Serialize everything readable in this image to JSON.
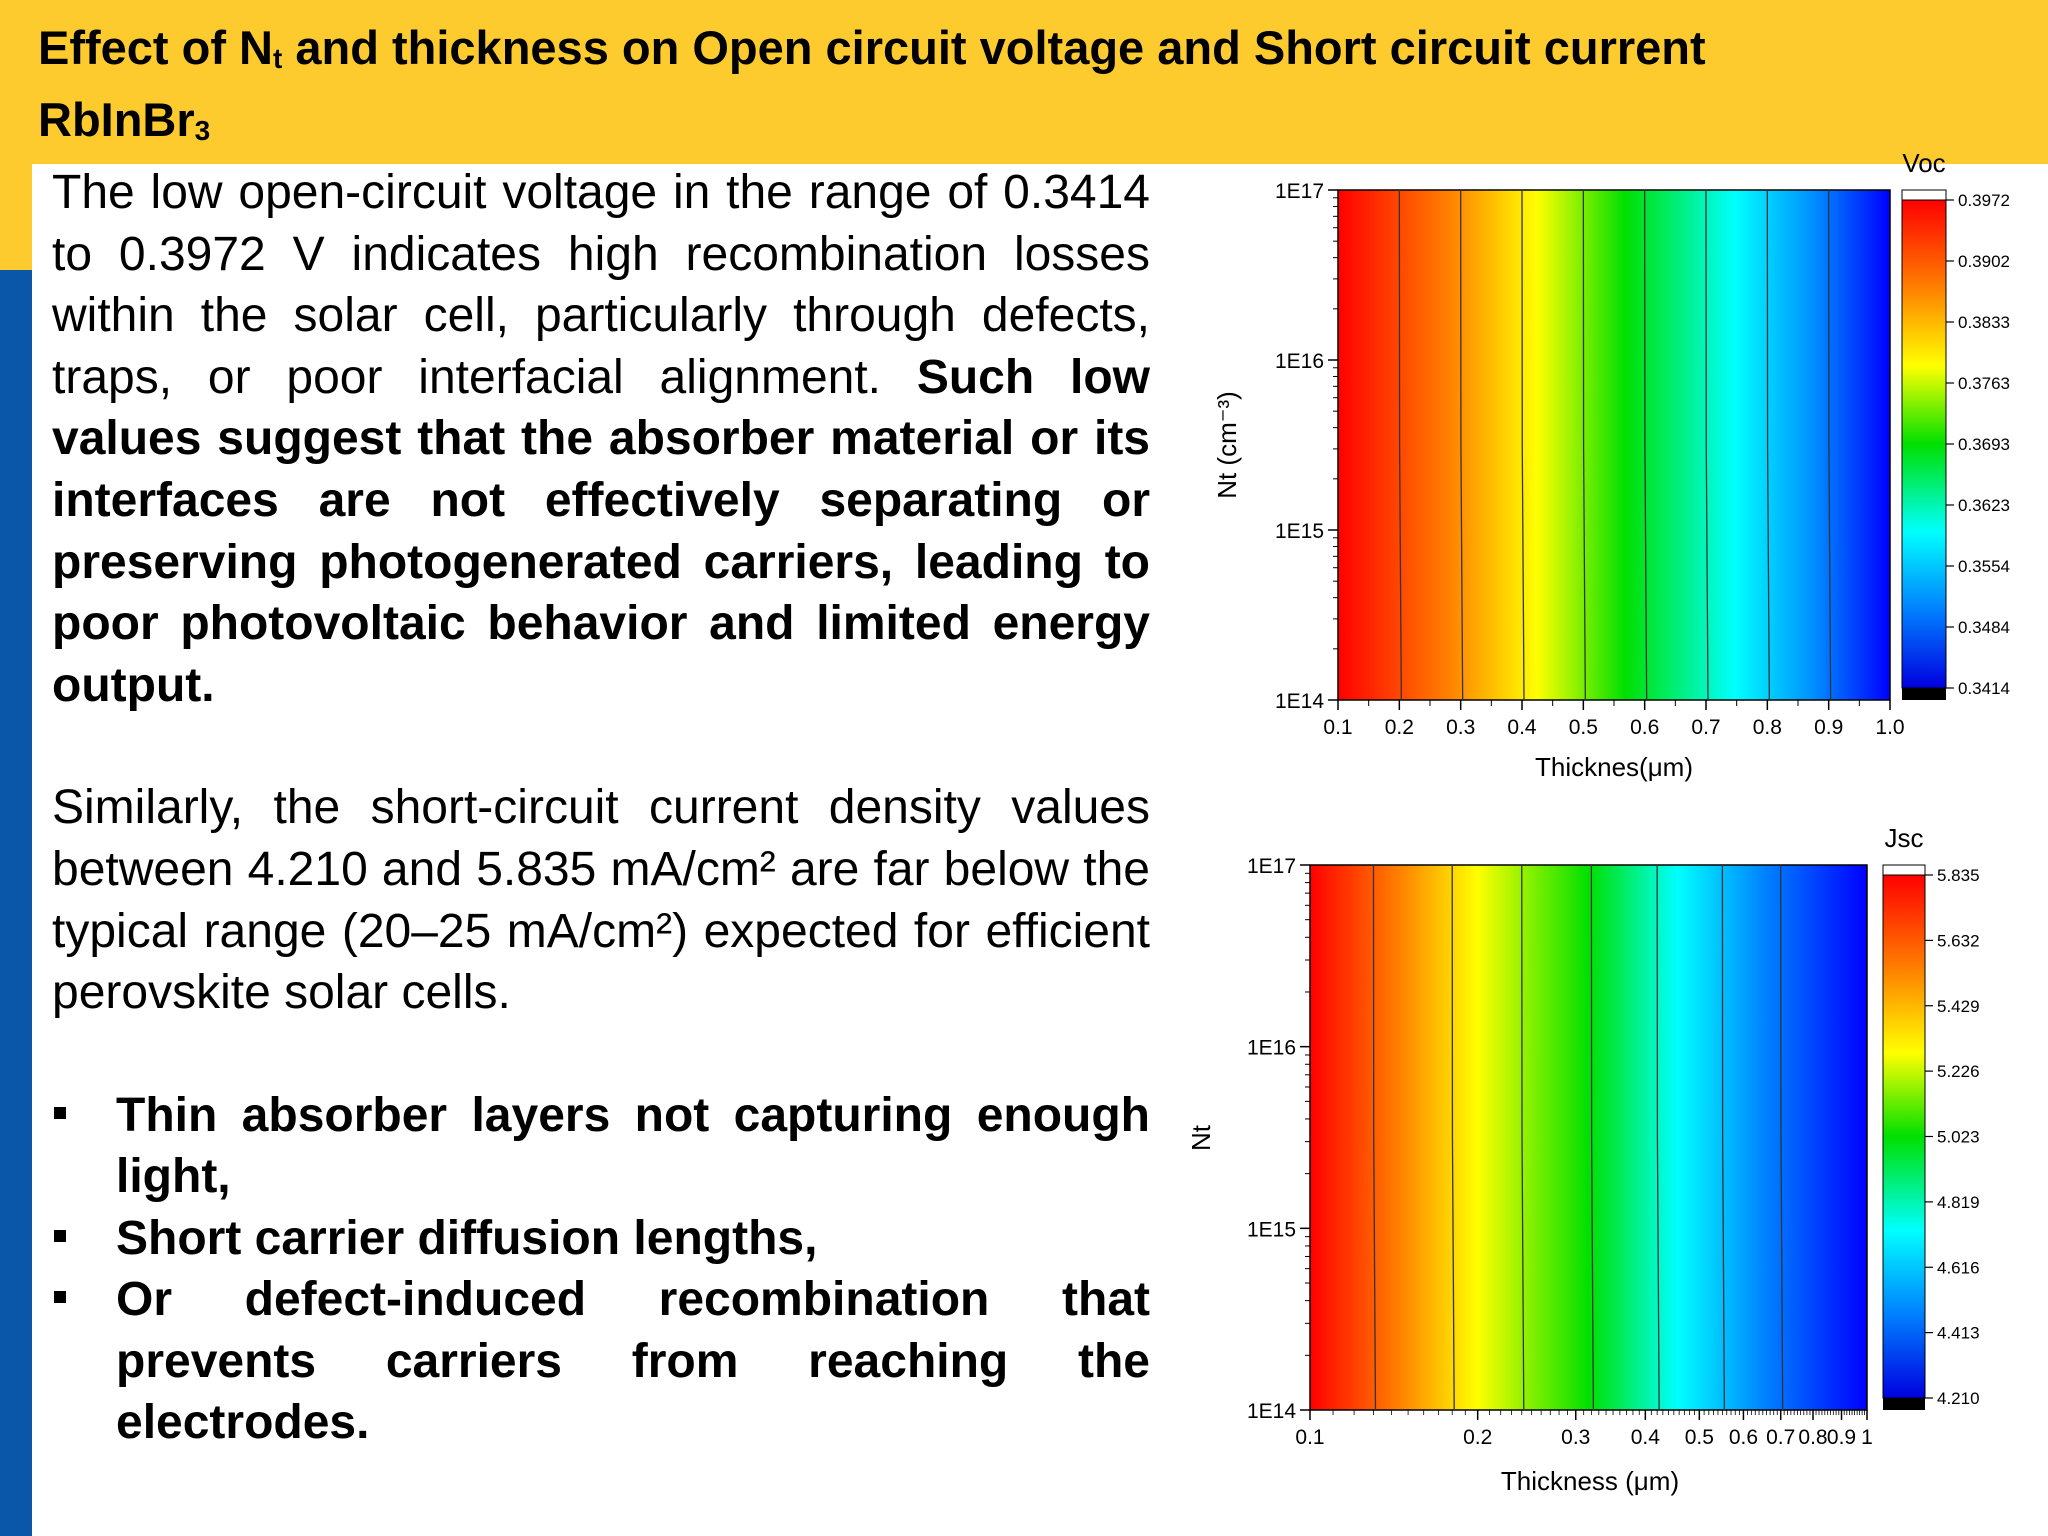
{
  "title": {
    "line1_a": "Effect of N",
    "line1_sub": "t",
    "line1_b": " and thickness on Open circuit voltage and Short circuit current",
    "line2_a": "RbInBr",
    "line2_sub": "3"
  },
  "paragraph1": {
    "normal": "The low open-circuit voltage in the range of 0.3414 to 0.3972 V indicates high recombination losses within the solar cell, particularly through defects, traps, or poor interfacial alignment.",
    "bold": " Such low values suggest that the absorber material or its interfaces are not effectively separating or preserving photogenerated carriers, leading to poor photovoltaic behavior and limited energy output."
  },
  "paragraph2": "Similarly, the short-circuit current density  values between 4.210 and 5.835 mA/cm² are far below the typical range (20–25 mA/cm²) expected for efficient perovskite solar cells.",
  "bullets": [
    "Thin absorber layers not capturing enough light,",
    "Short carrier diffusion lengths,",
    "Or defect-induced recombination that prevents carriers from reaching the electrodes."
  ],
  "chart_data": [
    {
      "type": "heatmap",
      "title": "Voc",
      "xlabel": "Thicknes(μm)",
      "ylabel": "Nt (cm⁻³)",
      "x_scale": "linear",
      "y_scale": "log",
      "x_ticks": [
        "0.1",
        "0.2",
        "0.3",
        "0.4",
        "0.5",
        "0.6",
        "0.7",
        "0.8",
        "0.9",
        "1.0"
      ],
      "y_ticks": [
        "1E14",
        "1E15",
        "1E16",
        "1E17"
      ],
      "xlim": [
        0.1,
        1.0
      ],
      "ylim": [
        100000000000000.0,
        1e+17
      ],
      "colorbar_ticks": [
        "0.3972",
        "0.3902",
        "0.3833",
        "0.3763",
        "0.3693",
        "0.3623",
        "0.3554",
        "0.3484",
        "0.3414"
      ],
      "value_range": [
        0.3414,
        0.3972
      ],
      "contour_lines_x": [
        0.2,
        0.3,
        0.4,
        0.5,
        0.6,
        0.7,
        0.8,
        0.9
      ],
      "description_values": {
        "x": [
          0.1,
          1.0
        ],
        "voc_approx": [
          0.3972,
          0.3414
        ]
      }
    },
    {
      "type": "heatmap",
      "title": "Jsc",
      "xlabel": "Thickness (μm)",
      "ylabel": "Nt",
      "x_scale": "log",
      "y_scale": "log",
      "x_ticks": [
        "0.1",
        "0.2",
        "0.3",
        "0.4",
        "0.5",
        "0.6",
        "0.7",
        "0.8",
        "0.9",
        "1"
      ],
      "y_ticks": [
        "1E14",
        "1E15",
        "1E16",
        "1E17"
      ],
      "xlim": [
        0.1,
        1.0
      ],
      "ylim": [
        100000000000000.0,
        1e+17
      ],
      "colorbar_ticks": [
        "5.835",
        "5.632",
        "5.429",
        "5.226",
        "5.023",
        "4.819",
        "4.616",
        "4.413",
        "4.210"
      ],
      "value_range": [
        4.21,
        5.835
      ],
      "contour_lines_x": [
        0.13,
        0.18,
        0.24,
        0.32,
        0.42,
        0.55,
        0.7
      ],
      "description_values": {
        "x": [
          0.1,
          1.0
        ],
        "jsc_approx": [
          5.835,
          4.21
        ]
      }
    }
  ]
}
